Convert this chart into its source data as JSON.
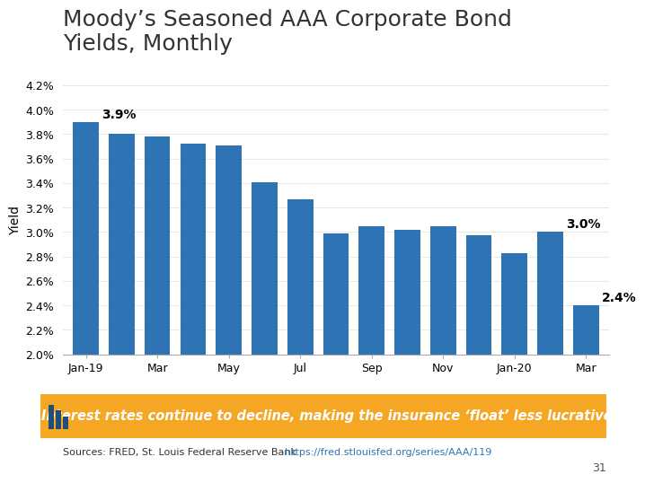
{
  "title_line1": "Moody’s Seasoned AAA Corporate Bond",
  "title_line2": "Yields, Monthly",
  "ylabel": "Yield",
  "bar_color": "#2E74B5",
  "background_color": "#FFFFFF",
  "x_tick_labels": [
    "Jan-19",
    "Mar",
    "May",
    "Jul",
    "Sep",
    "Nov",
    "Jan-20",
    "Mar"
  ],
  "x_tick_positions": [
    0,
    2,
    4,
    6,
    8,
    10,
    12,
    14
  ],
  "values": [
    3.9,
    3.8,
    3.78,
    3.72,
    3.71,
    3.41,
    3.27,
    2.99,
    3.05,
    3.02,
    3.05,
    2.97,
    2.83,
    3.0,
    2.4
  ],
  "ylim": [
    2.0,
    4.2
  ],
  "yticks": [
    2.0,
    2.2,
    2.4,
    2.6,
    2.8,
    3.0,
    3.2,
    3.4,
    3.6,
    3.8,
    4.0,
    4.2
  ],
  "ytick_labels": [
    "2.0%",
    "2.2%",
    "2.4%",
    "2.6%",
    "2.8%",
    "3.0%",
    "3.2%",
    "3.4%",
    "3.6%",
    "3.8%",
    "4.0%",
    "4.2%"
  ],
  "ann_bar0_text": "3.9%",
  "ann_bar13_text": "3.0%",
  "ann_bar14_text": "2.4%",
  "callout_text": "Interest rates continue to decline, making the insurance ‘float’ less lucrative.",
  "callout_bg": "#F5A623",
  "callout_text_color": "#FFFFFF",
  "source_prefix": "Sources: FRED, St. Louis Federal Reserve Bank ",
  "source_link": "https://fred.stlouisfed.org/series/AAA/119",
  "page_num": "31",
  "title_fontsize": 18,
  "tick_fontsize": 9,
  "annotation_fontsize": 10
}
